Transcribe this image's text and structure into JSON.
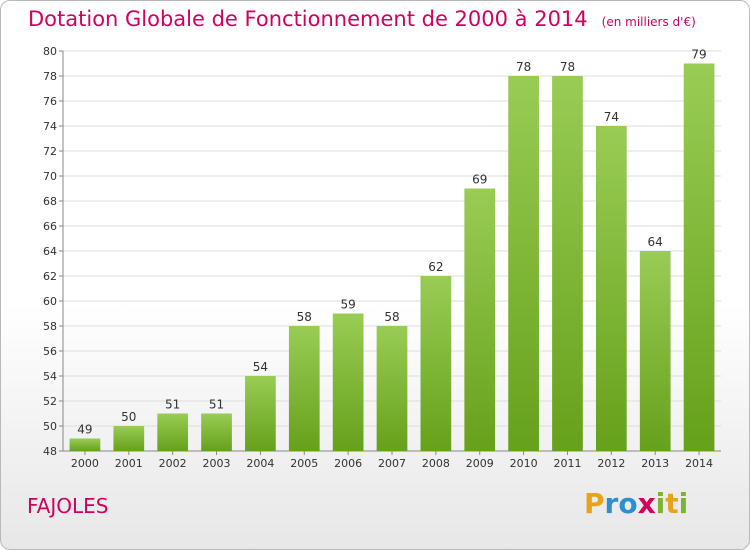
{
  "header": {
    "title": "Dotation Globale de Fonctionnement de 2000 à 2014",
    "subtitle": "(en milliers d'€)"
  },
  "footer": {
    "commune": "FAJOLES",
    "logo": [
      "P",
      "r",
      "o",
      "x",
      "i",
      "t",
      "i"
    ]
  },
  "colors": {
    "bar_top": "#99cc55",
    "bar_bottom": "#66a11a",
    "title": "#d3005d",
    "logo": [
      "#e8a31c",
      "#2d8fcf",
      "#2d8fcf",
      "#d3005d",
      "#7ab52f",
      "#e8a31c",
      "#7ab52f"
    ]
  },
  "chart_data": {
    "type": "bar",
    "categories": [
      "2000",
      "2001",
      "2002",
      "2003",
      "2004",
      "2005",
      "2006",
      "2007",
      "2008",
      "2009",
      "2010",
      "2011",
      "2012",
      "2013",
      "2014"
    ],
    "values": [
      49,
      50,
      51,
      51,
      54,
      58,
      59,
      58,
      62,
      69,
      78,
      78,
      74,
      64,
      79
    ],
    "ylim": [
      48,
      80
    ],
    "yticks": [
      48,
      50,
      52,
      54,
      56,
      58,
      60,
      62,
      64,
      66,
      68,
      70,
      72,
      74,
      76,
      78,
      80
    ],
    "grid": true,
    "legend": "none"
  }
}
